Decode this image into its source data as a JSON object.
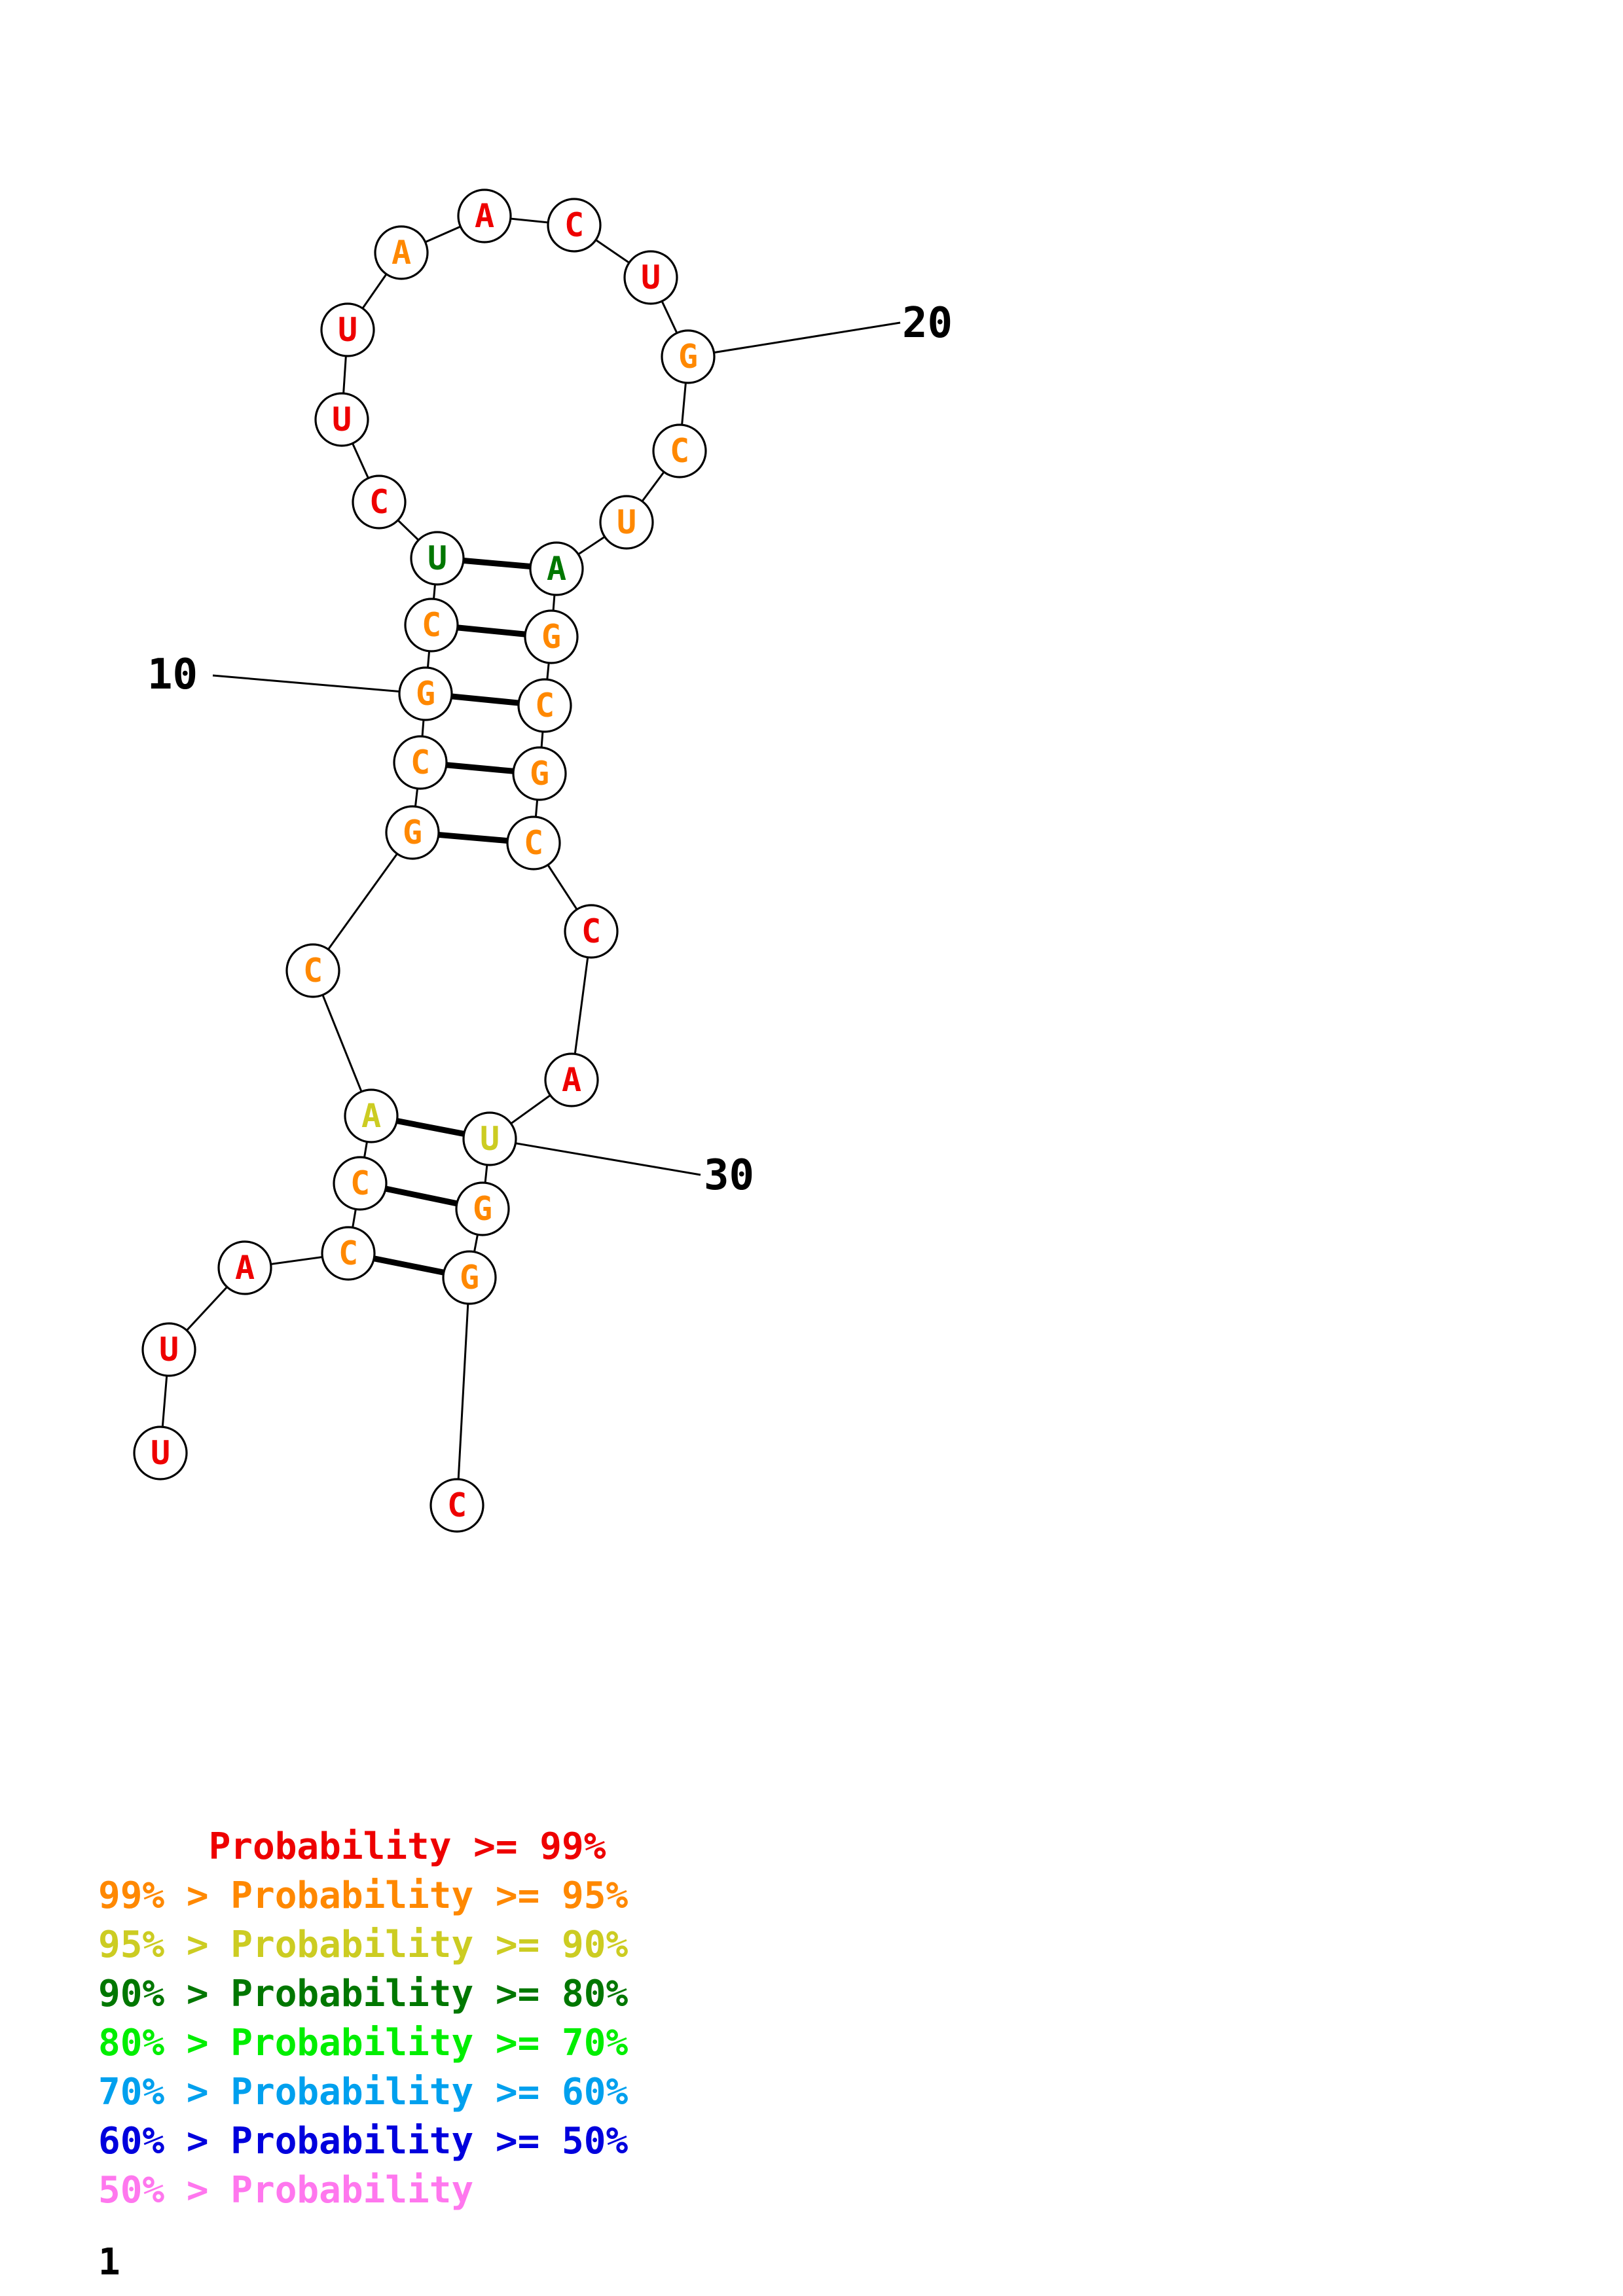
{
  "colors": {
    "p99": "#ee0000",
    "p95": "#ff8800",
    "p90": "#cccc22",
    "p80": "#007700",
    "p70": "#00ee00",
    "p60": "#00a0ee",
    "p50": "#0000dd",
    "plt50": "#ff77ee"
  },
  "sequence": [
    {
      "n": 1,
      "base": "U",
      "prob": "p99"
    },
    {
      "n": 2,
      "base": "U",
      "prob": "p99"
    },
    {
      "n": 3,
      "base": "A",
      "prob": "p99"
    },
    {
      "n": 4,
      "base": "C",
      "prob": "p95"
    },
    {
      "n": 5,
      "base": "C",
      "prob": "p95"
    },
    {
      "n": 6,
      "base": "A",
      "prob": "p90"
    },
    {
      "n": 7,
      "base": "C",
      "prob": "p95"
    },
    {
      "n": 8,
      "base": "G",
      "prob": "p95"
    },
    {
      "n": 9,
      "base": "C",
      "prob": "p95"
    },
    {
      "n": 10,
      "base": "G",
      "prob": "p95"
    },
    {
      "n": 11,
      "base": "C",
      "prob": "p95"
    },
    {
      "n": 12,
      "base": "U",
      "prob": "p80"
    },
    {
      "n": 13,
      "base": "C",
      "prob": "p99"
    },
    {
      "n": 14,
      "base": "U",
      "prob": "p99"
    },
    {
      "n": 15,
      "base": "U",
      "prob": "p99"
    },
    {
      "n": 16,
      "base": "A",
      "prob": "p95"
    },
    {
      "n": 17,
      "base": "A",
      "prob": "p99"
    },
    {
      "n": 18,
      "base": "C",
      "prob": "p99"
    },
    {
      "n": 19,
      "base": "U",
      "prob": "p99"
    },
    {
      "n": 20,
      "base": "G",
      "prob": "p95"
    },
    {
      "n": 21,
      "base": "C",
      "prob": "p95"
    },
    {
      "n": 22,
      "base": "U",
      "prob": "p95"
    },
    {
      "n": 23,
      "base": "A",
      "prob": "p80"
    },
    {
      "n": 24,
      "base": "G",
      "prob": "p95"
    },
    {
      "n": 25,
      "base": "C",
      "prob": "p95"
    },
    {
      "n": 26,
      "base": "G",
      "prob": "p95"
    },
    {
      "n": 27,
      "base": "C",
      "prob": "p95"
    },
    {
      "n": 28,
      "base": "C",
      "prob": "p99"
    },
    {
      "n": 29,
      "base": "A",
      "prob": "p99"
    },
    {
      "n": 30,
      "base": "U",
      "prob": "p90"
    },
    {
      "n": 31,
      "base": "G",
      "prob": "p95"
    },
    {
      "n": 32,
      "base": "G",
      "prob": "p95"
    },
    {
      "n": 33,
      "base": "C",
      "prob": "p99"
    }
  ],
  "pairs": [
    [
      4,
      32
    ],
    [
      5,
      31
    ],
    [
      6,
      30
    ],
    [
      8,
      27
    ],
    [
      9,
      26
    ],
    [
      10,
      25
    ],
    [
      11,
      24
    ],
    [
      12,
      23
    ]
  ],
  "position_labels": [
    {
      "n": 10,
      "text": "10"
    },
    {
      "n": 20,
      "text": "20"
    },
    {
      "n": 30,
      "text": "30"
    }
  ],
  "legend": [
    {
      "text": "     Probability >= 99%",
      "prob": "p99"
    },
    {
      "text": "99% > Probability >= 95%",
      "prob": "p95"
    },
    {
      "text": "95% > Probability >= 90%",
      "prob": "p90"
    },
    {
      "text": "90% > Probability >= 80%",
      "prob": "p80"
    },
    {
      "text": "80% > Probability >= 70%",
      "prob": "p70"
    },
    {
      "text": "70% > Probability >= 60%",
      "prob": "p60"
    },
    {
      "text": "60% > Probability >= 50%",
      "prob": "p50"
    },
    {
      "text": "50% > Probability",
      "prob": "plt50"
    }
  ],
  "page_number": "1"
}
